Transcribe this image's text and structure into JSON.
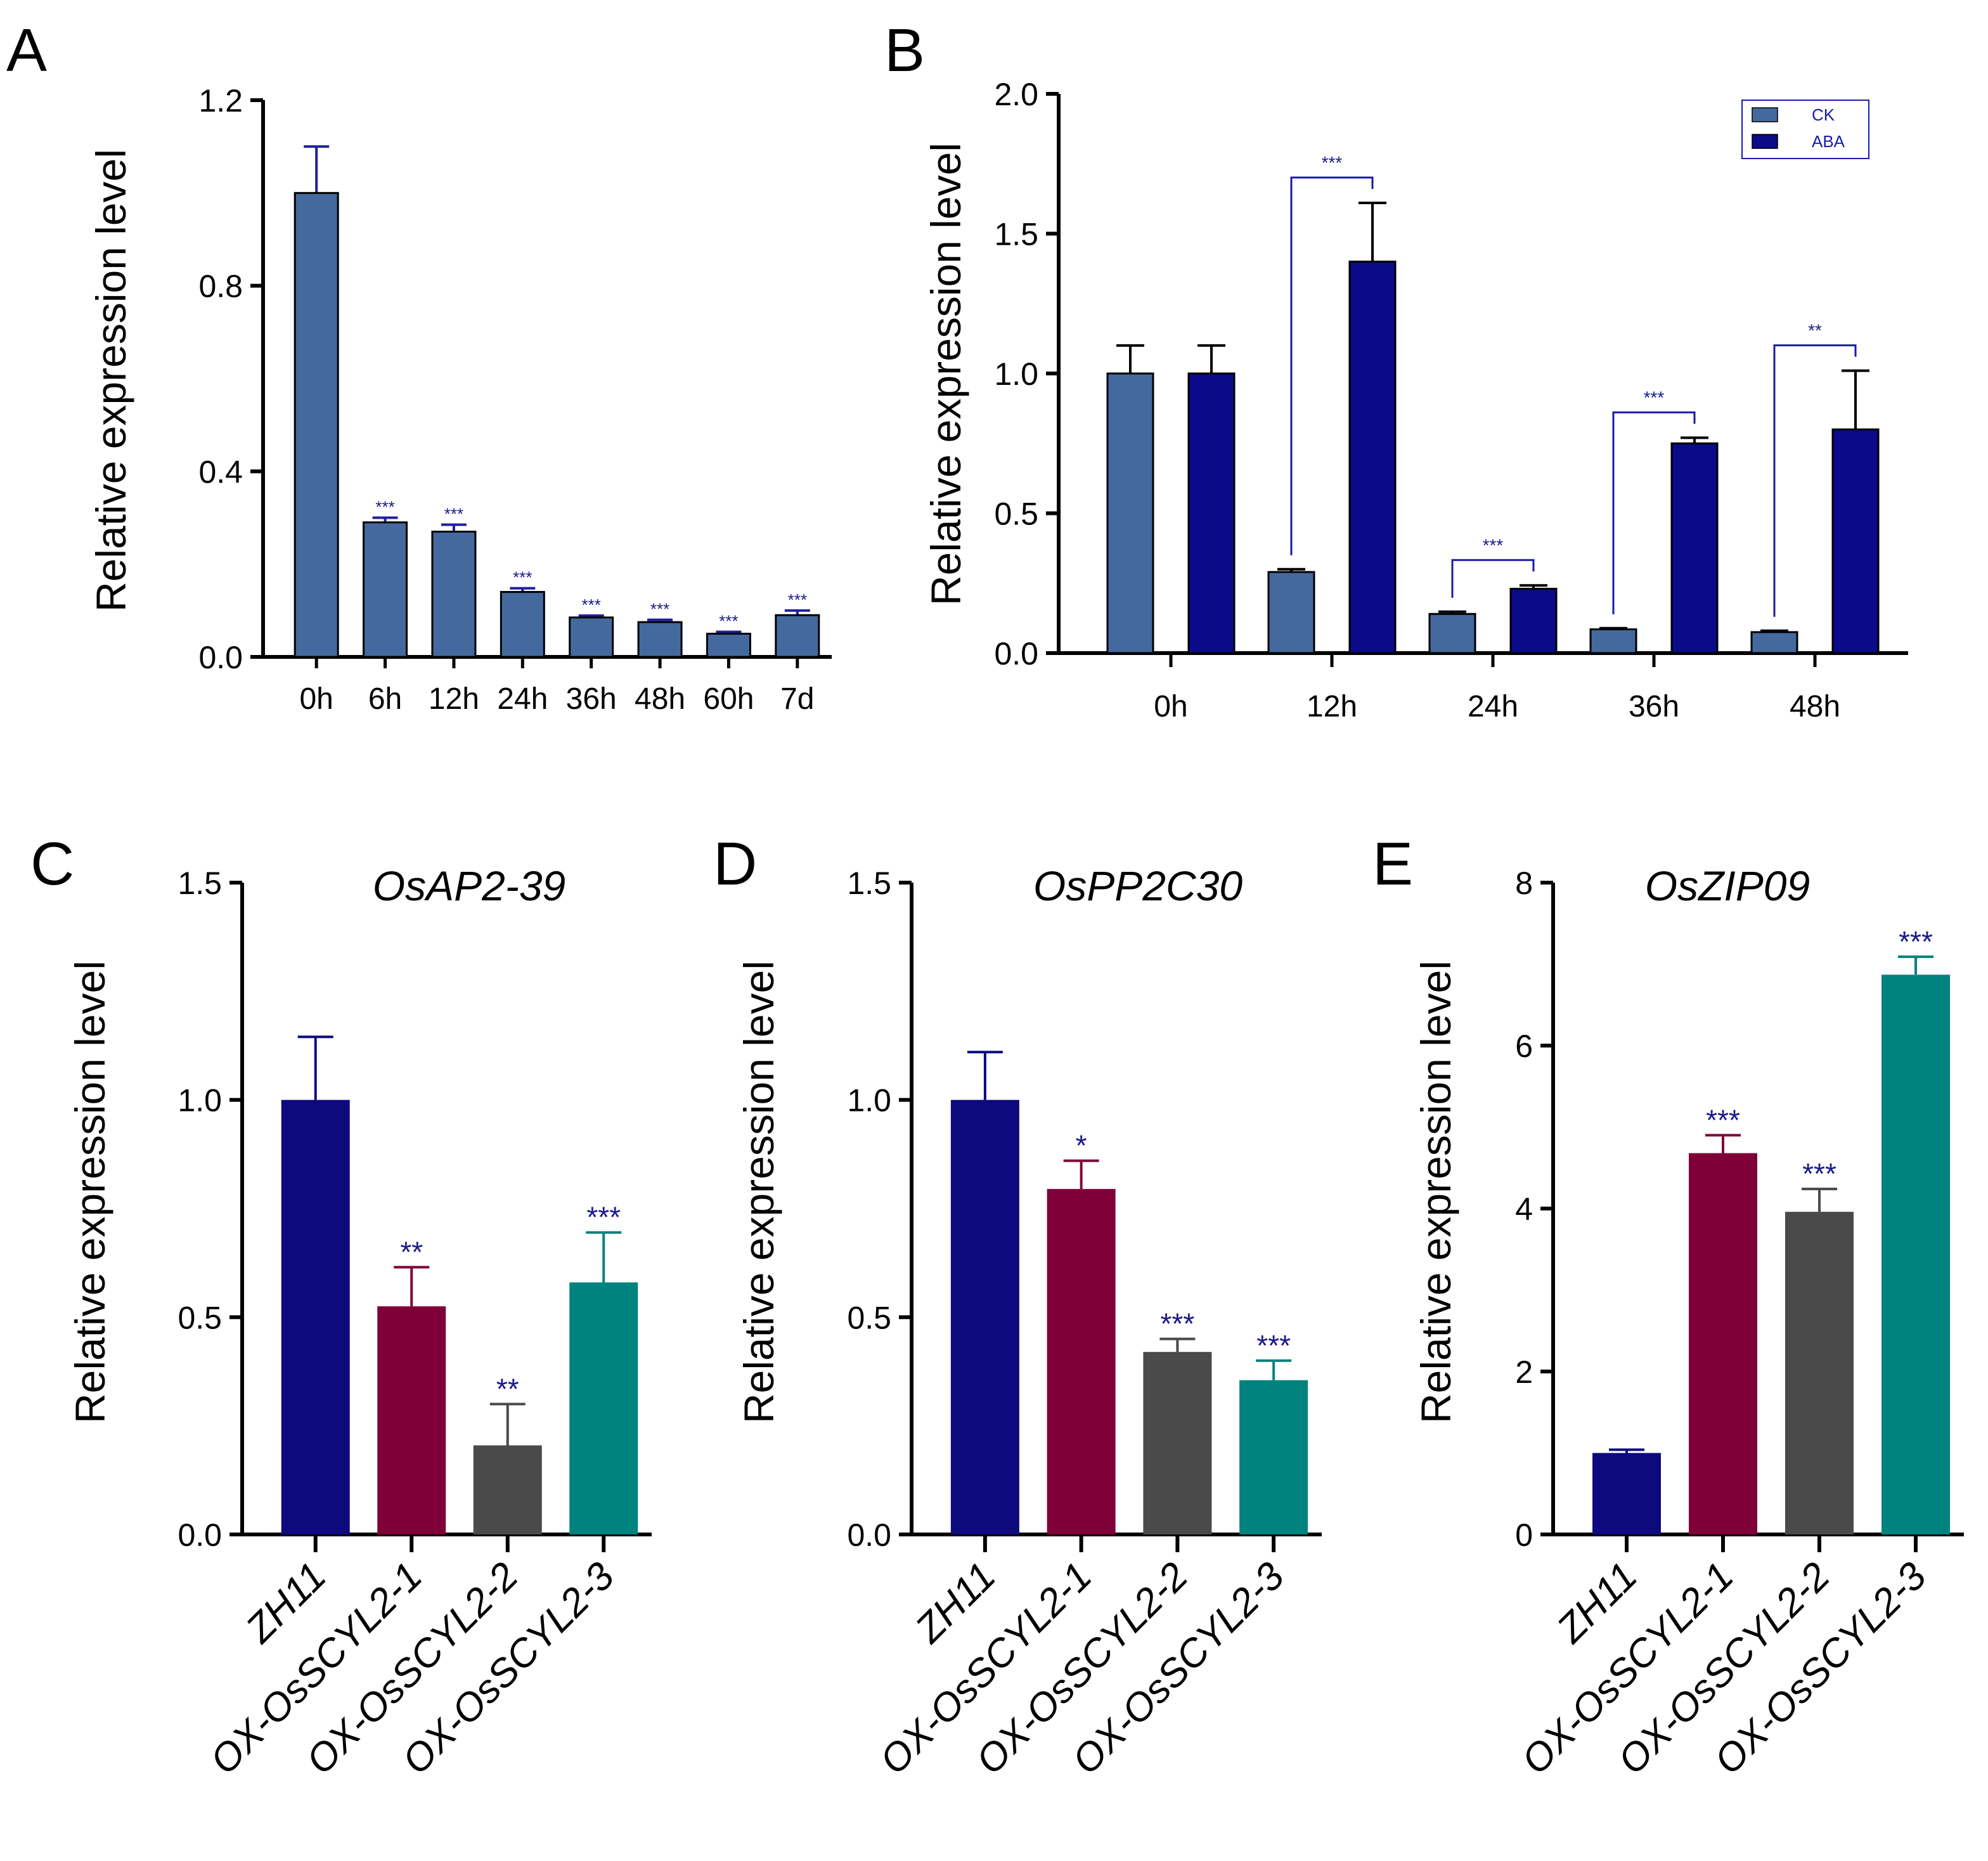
{
  "chart_data": [
    {
      "panel": "A",
      "type": "bar",
      "title": "",
      "xlabel": "",
      "ylabel": "Relative expression level",
      "ylim": [
        0,
        1.2
      ],
      "yticks": [
        "0.0",
        "0.4",
        "0.8",
        "1.2"
      ],
      "categories": [
        "0h",
        "6h",
        "12h",
        "24h",
        "36h",
        "48h",
        "60h",
        "7d"
      ],
      "values": [
        1.0,
        0.29,
        0.27,
        0.14,
        0.085,
        0.075,
        0.05,
        0.09
      ],
      "errors": [
        0.1,
        0.01,
        0.015,
        0.008,
        0.004,
        0.005,
        0.004,
        0.01
      ],
      "significance": [
        "",
        "***",
        "***",
        "***",
        "***",
        "***",
        "***",
        "***"
      ],
      "colors": {
        "bar": "#44699e",
        "error": "#2020a0"
      }
    },
    {
      "panel": "B",
      "type": "bar",
      "title": "",
      "xlabel": "",
      "ylabel": "Relative expression level",
      "ylim": [
        0,
        2.0
      ],
      "yticks": [
        "0.0",
        "0.5",
        "1.0",
        "1.5",
        "2.0"
      ],
      "categories": [
        "0h",
        "12h",
        "24h",
        "36h",
        "48h"
      ],
      "series": [
        {
          "name": "CK",
          "values": [
            1.0,
            0.29,
            0.14,
            0.085,
            0.075
          ],
          "errors": [
            0.1,
            0.01,
            0.008,
            0.004,
            0.005
          ],
          "color": "#44699e"
        },
        {
          "name": "ABA",
          "values": [
            1.0,
            1.4,
            0.23,
            0.75,
            0.8
          ],
          "errors": [
            0.1,
            0.21,
            0.012,
            0.02,
            0.21
          ],
          "color": "#0a0a8a"
        }
      ],
      "comparisons": [
        {
          "category": "12h",
          "label": "***"
        },
        {
          "category": "24h",
          "label": "***"
        },
        {
          "category": "36h",
          "label": "***"
        },
        {
          "category": "48h",
          "label": "**"
        }
      ],
      "legend": {
        "entries": [
          "CK",
          "ABA"
        ],
        "placement": "top-right"
      }
    },
    {
      "panel": "C",
      "type": "bar",
      "title": "OsAP2-39",
      "xlabel": "",
      "ylabel": "Relative expression level",
      "ylim": [
        0,
        1.5
      ],
      "yticks": [
        "0.0",
        "0.5",
        "1.0",
        "1.5"
      ],
      "categories": [
        "ZH11",
        "OX-OsSCYL2-1",
        "OX-OsSCYL2-2",
        "OX-OsSCYL2-3"
      ],
      "values": [
        1.0,
        0.525,
        0.205,
        0.58
      ],
      "errors": [
        0.145,
        0.09,
        0.095,
        0.115
      ],
      "significance": [
        "",
        "**",
        "**",
        "***"
      ],
      "colors": [
        "#0d0a7e",
        "#7f0038",
        "#4a4a4a",
        "#00827e"
      ]
    },
    {
      "panel": "D",
      "type": "bar",
      "title": "OsPP2C30",
      "xlabel": "",
      "ylabel": "Relative expression level",
      "ylim": [
        0,
        1.5
      ],
      "yticks": [
        "0.0",
        "0.5",
        "1.0",
        "1.5"
      ],
      "categories": [
        "ZH11",
        "OX-OsSCYL2-1",
        "OX-OsSCYL2-2",
        "OX-OsSCYL2-3"
      ],
      "values": [
        1.0,
        0.795,
        0.42,
        0.355
      ],
      "errors": [
        0.11,
        0.065,
        0.03,
        0.045
      ],
      "significance": [
        "",
        "*",
        "***",
        "***"
      ],
      "colors": [
        "#0d0a7e",
        "#7f0038",
        "#4a4a4a",
        "#00827e"
      ]
    },
    {
      "panel": "E",
      "type": "bar",
      "title": "OsZIP09",
      "xlabel": "",
      "ylabel": "Relative expression level",
      "ylim": [
        0,
        8
      ],
      "yticks": [
        "0",
        "2",
        "4",
        "6",
        "8"
      ],
      "categories": [
        "ZH11",
        "OX-OsSCYL2-1",
        "OX-OsSCYL2-2",
        "OX-OsSCYL2-3"
      ],
      "values": [
        1.0,
        4.68,
        3.96,
        6.87
      ],
      "errors": [
        0.04,
        0.22,
        0.28,
        0.22
      ],
      "significance": [
        "",
        "***",
        "***",
        "***"
      ],
      "colors": [
        "#0d0a7e",
        "#7f0038",
        "#4a4a4a",
        "#00827e"
      ]
    }
  ]
}
